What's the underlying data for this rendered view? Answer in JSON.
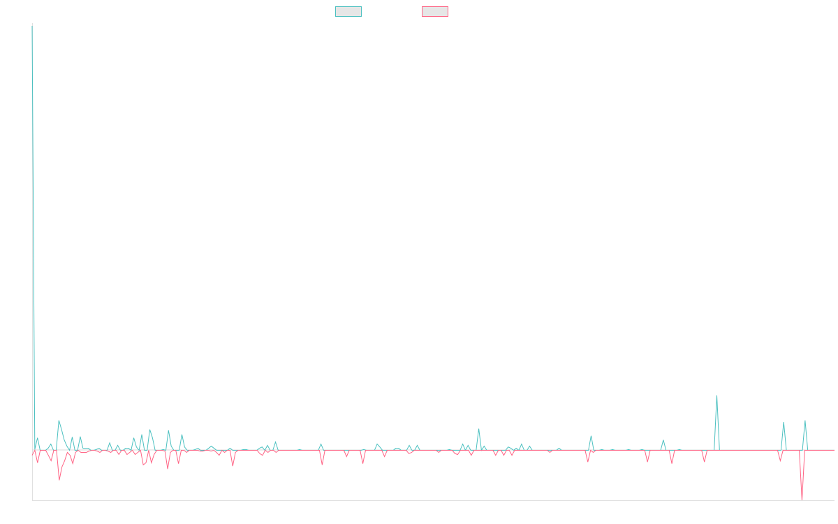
{
  "chart_data": {
    "type": "line",
    "title": "",
    "xlabel": "",
    "ylabel": "",
    "x_tick_labels": [],
    "y_tick_labels": [],
    "grid": false,
    "legend": "top-center",
    "ylim": [
      -1.2,
      10.2
    ],
    "series": [
      {
        "color": "#4bc0c0",
        "values": [
          10.2,
          0.02,
          0.3,
          0.0,
          0.0,
          0.0,
          0.05,
          0.15,
          0.0,
          0.0,
          0.72,
          0.5,
          0.25,
          0.1,
          0.0,
          0.32,
          0.0,
          0.0,
          0.33,
          0.05,
          0.05,
          0.05,
          0.0,
          0.0,
          0.02,
          0.05,
          0.0,
          0.0,
          0.0,
          0.18,
          0.0,
          0.0,
          0.12,
          0.0,
          0.0,
          0.05,
          0.05,
          0.0,
          0.3,
          0.08,
          0.0,
          0.38,
          0.0,
          0.0,
          0.5,
          0.3,
          0.0,
          0.0,
          0.0,
          0.02,
          0.0,
          0.48,
          0.1,
          0.0,
          0.0,
          0.0,
          0.38,
          0.08,
          0.0,
          0.0,
          0.0,
          0.02,
          0.05,
          0.0,
          0.0,
          0.0,
          0.05,
          0.1,
          0.05,
          0.0,
          0.0,
          0.0,
          0.0,
          0.0,
          0.05,
          0.0,
          0.0,
          0.0,
          0.0,
          0.02,
          0.02,
          0.0,
          0.0,
          0.0,
          0.0,
          0.05,
          0.08,
          0.0,
          0.12,
          0.0,
          0.0,
          0.2,
          0.0,
          0.0,
          0.0,
          0.0,
          0.0,
          0.0,
          0.0,
          0.0,
          0.02,
          0.0,
          0.0,
          0.0,
          0.0,
          0.0,
          0.0,
          0.0,
          0.15,
          0.0,
          0.0,
          0.0,
          0.0,
          0.0,
          0.0,
          0.0,
          0.0,
          0.0,
          0.0,
          0.0,
          0.0,
          0.0,
          0.0,
          0.0,
          0.02,
          0.0,
          0.0,
          0.0,
          0.0,
          0.15,
          0.08,
          0.0,
          0.0,
          0.0,
          0.0,
          0.0,
          0.05,
          0.05,
          0.0,
          0.0,
          0.0,
          0.12,
          0.0,
          0.0,
          0.12,
          0.0,
          0.0,
          0.0,
          0.0,
          0.0,
          0.0,
          0.0,
          0.0,
          0.0,
          0.0,
          0.0,
          0.02,
          0.0,
          0.0,
          0.0,
          0.0,
          0.15,
          0.0,
          0.12,
          0.0,
          0.0,
          0.0,
          0.52,
          0.0,
          0.1,
          0.0,
          0.0,
          0.0,
          0.0,
          0.0,
          0.0,
          0.0,
          0.0,
          0.08,
          0.05,
          0.0,
          0.05,
          0.0,
          0.15,
          0.0,
          0.0,
          0.1,
          0.0,
          0.0,
          0.0,
          0.0,
          0.0,
          0.0,
          0.0,
          0.0,
          0.0,
          0.0,
          0.05,
          0.0,
          0.0,
          0.0,
          0.0,
          0.0,
          0.0,
          0.0,
          0.0,
          0.0,
          0.0,
          0.0,
          0.35,
          0.0,
          0.0,
          0.0,
          0.02,
          0.0,
          0.0,
          0.0,
          0.02,
          0.0,
          0.0,
          0.0,
          0.0,
          0.0,
          0.02,
          0.0,
          0.0,
          0.0,
          0.0,
          0.02,
          0.0,
          0.0,
          0.0,
          0.0,
          0.0,
          0.0,
          0.0,
          0.25,
          0.0,
          0.0,
          0.0,
          0.0,
          0.0,
          0.02,
          0.0,
          0.0,
          0.0,
          0.0,
          0.0,
          0.0,
          0.0,
          0.0,
          0.0,
          0.0,
          0.0,
          0.0,
          0.0,
          1.32,
          0.0,
          0.0,
          0.0,
          0.0,
          0.0,
          0.0,
          0.0,
          0.0,
          0.0,
          0.0,
          0.0,
          0.0,
          0.0,
          0.0,
          0.0,
          0.0,
          0.0,
          0.0,
          0.0,
          0.0,
          0.0,
          0.0,
          0.0,
          0.0,
          0.68,
          0.0,
          0.0,
          0.0,
          0.0,
          0.0,
          0.0,
          0.0,
          0.72,
          0.0,
          0.0,
          0.0,
          0.0,
          0.0,
          0.0,
          0.0,
          0.0,
          0.0,
          0.0,
          0.0
        ]
      },
      {
        "color": "#ff6384",
        "values": [
          -0.12,
          0.0,
          -0.3,
          0.0,
          0.0,
          0.0,
          -0.12,
          -0.25,
          0.0,
          0.0,
          -0.72,
          -0.4,
          -0.25,
          -0.05,
          -0.12,
          -0.32,
          -0.05,
          0.0,
          -0.05,
          -0.05,
          -0.05,
          -0.02,
          0.0,
          0.0,
          -0.02,
          -0.05,
          0.0,
          0.0,
          -0.02,
          -0.05,
          0.0,
          0.0,
          -0.1,
          0.0,
          0.0,
          -0.1,
          -0.05,
          0.0,
          -0.1,
          -0.05,
          0.0,
          -0.35,
          -0.3,
          0.0,
          -0.3,
          -0.1,
          0.0,
          0.0,
          0.0,
          -0.02,
          -0.45,
          -0.05,
          0.0,
          0.0,
          -0.32,
          0.0,
          0.0,
          -0.05,
          0.0,
          0.0,
          0.0,
          0.0,
          -0.02,
          -0.02,
          0.0,
          0.0,
          -0.02,
          0.0,
          -0.05,
          -0.12,
          0.0,
          -0.05,
          0.0,
          0.0,
          -0.38,
          -0.05,
          0.0,
          0.0,
          0.0,
          0.0,
          0.0,
          0.0,
          0.0,
          0.0,
          -0.08,
          -0.12,
          0.0,
          -0.05,
          0.0,
          0.0,
          -0.05,
          0.0,
          0.0,
          0.0,
          0.0,
          0.0,
          0.0,
          0.0,
          0.0,
          0.0,
          0.0,
          0.0,
          0.0,
          0.0,
          0.0,
          0.0,
          0.0,
          -0.35,
          0.0,
          0.0,
          0.0,
          0.0,
          0.0,
          0.0,
          0.0,
          0.0,
          -0.15,
          0.0,
          0.0,
          0.0,
          0.0,
          0.0,
          -0.32,
          0.0,
          0.0,
          0.0,
          0.0,
          0.0,
          0.0,
          0.0,
          -0.15,
          0.0,
          0.0,
          0.0,
          0.0,
          0.0,
          0.0,
          0.0,
          0.0,
          -0.08,
          -0.05,
          0.0,
          0.0,
          0.0,
          0.0,
          0.0,
          0.0,
          0.0,
          0.0,
          0.0,
          -0.05,
          0.0,
          0.0,
          0.0,
          0.0,
          0.0,
          -0.08,
          -0.1,
          0.0,
          0.0,
          0.0,
          0.0,
          -0.12,
          0.0,
          0.0,
          0.0,
          0.0,
          0.0,
          0.0,
          0.0,
          0.0,
          -0.12,
          0.0,
          0.0,
          -0.12,
          0.0,
          0.0,
          -0.12,
          0.0,
          0.0,
          0.0,
          0.0,
          0.0,
          0.0,
          0.0,
          0.0,
          0.0,
          0.0,
          0.0,
          0.0,
          0.0,
          -0.05,
          0.0,
          0.0,
          0.0,
          0.0,
          0.0,
          0.0,
          0.0,
          0.0,
          0.0,
          0.0,
          0.0,
          0.0,
          0.0,
          -0.28,
          0.0,
          -0.05,
          0.0,
          0.0,
          0.0,
          0.0,
          0.0,
          0.0,
          0.0,
          0.0,
          0.0,
          0.0,
          0.0,
          0.0,
          0.0,
          0.0,
          0.0,
          0.0,
          0.0,
          0.0,
          0.0,
          -0.28,
          0.0,
          0.0,
          0.0,
          0.0,
          0.0,
          0.0,
          0.0,
          0.0,
          -0.32,
          0.0,
          0.0,
          0.0,
          0.0,
          0.0,
          0.0,
          0.0,
          0.0,
          0.0,
          0.0,
          0.0,
          -0.28,
          0.0,
          0.0,
          0.0,
          0.0,
          0.0,
          0.0,
          0.0,
          0.0,
          0.0,
          0.0,
          0.0,
          0.0,
          0.0,
          0.0,
          0.0,
          0.0,
          0.0,
          0.0,
          0.0,
          0.0,
          0.0,
          0.0,
          0.0,
          0.0,
          0.0,
          0.0,
          0.0,
          -0.25,
          0.0,
          0.0,
          0.0,
          0.0,
          0.0,
          0.0,
          0.0,
          -1.2,
          0.0,
          0.0,
          0.0,
          0.0,
          0.0,
          0.0,
          0.0,
          0.0,
          0.0,
          0.0,
          0.0,
          0.0
        ]
      }
    ]
  }
}
